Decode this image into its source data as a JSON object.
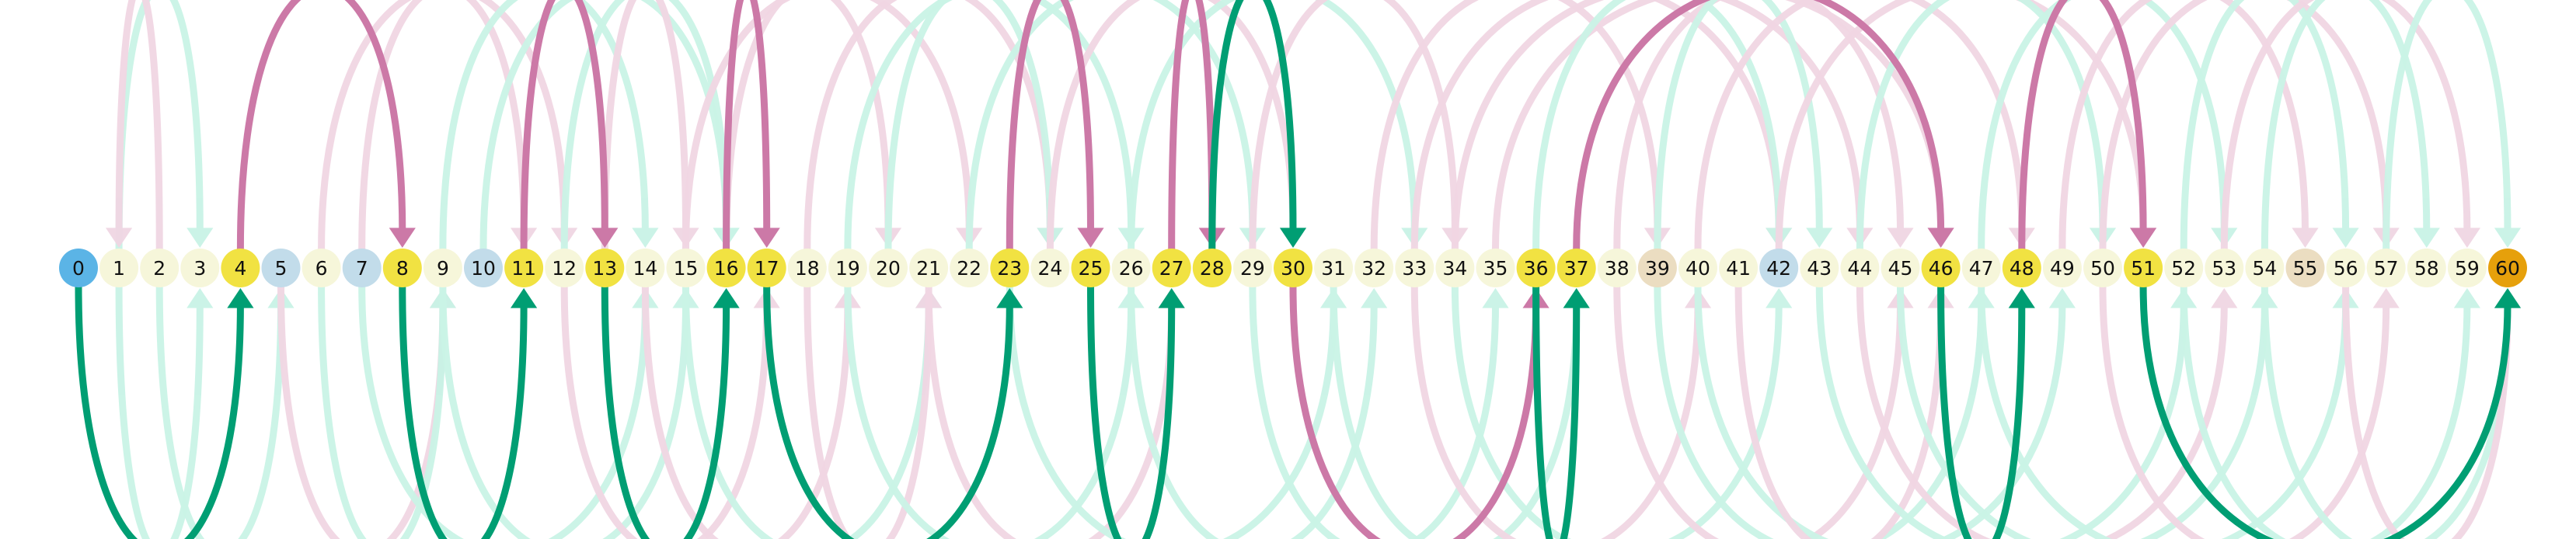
{
  "diagram": {
    "type": "arc-path-graph",
    "node_count": 61,
    "node_labels": [
      "0",
      "1",
      "2",
      "3",
      "4",
      "5",
      "6",
      "7",
      "8",
      "9",
      "10",
      "11",
      "12",
      "13",
      "14",
      "15",
      "16",
      "17",
      "18",
      "19",
      "20",
      "21",
      "22",
      "23",
      "24",
      "25",
      "26",
      "27",
      "28",
      "29",
      "30",
      "31",
      "32",
      "33",
      "34",
      "35",
      "36",
      "37",
      "38",
      "39",
      "40",
      "41",
      "42",
      "43",
      "44",
      "45",
      "46",
      "47",
      "48",
      "49",
      "50",
      "51",
      "52",
      "53",
      "54",
      "55",
      "56",
      "57",
      "58",
      "59",
      "60"
    ],
    "colors": {
      "default": "#f6f6da",
      "path": "#f1e242",
      "start": "#5bb4e6",
      "goal": "#e6a00b",
      "blue_light": "#c2dcea",
      "tan": "#ebddc1",
      "forward_strong": "#009e73",
      "forward_faint": "#c9f3e6",
      "backward_strong": "#cc79a7",
      "backward_faint": "#f0d6e3"
    },
    "special_nodes": {
      "start": [
        0
      ],
      "goal": [
        60
      ],
      "path": [
        4,
        8,
        11,
        13,
        16,
        17,
        23,
        25,
        27,
        28,
        30,
        36,
        37,
        46,
        48,
        51
      ],
      "blue_light": [
        5,
        7,
        10,
        42
      ],
      "tan": [
        39,
        55
      ]
    },
    "path_edges": [
      {
        "from": 0,
        "to": 4,
        "dir": "forward"
      },
      {
        "from": 4,
        "to": 8,
        "dir": "backward"
      },
      {
        "from": 8,
        "to": 11,
        "dir": "forward"
      },
      {
        "from": 11,
        "to": 13,
        "dir": "backward"
      },
      {
        "from": 13,
        "to": 16,
        "dir": "forward"
      },
      {
        "from": 16,
        "to": 17,
        "dir": "backward"
      },
      {
        "from": 17,
        "to": 23,
        "dir": "forward"
      },
      {
        "from": 23,
        "to": 25,
        "dir": "backward"
      },
      {
        "from": 25,
        "to": 27,
        "dir": "forward"
      },
      {
        "from": 27,
        "to": 28,
        "dir": "backward"
      },
      {
        "from": 28,
        "to": 30,
        "dir": "forward-top"
      },
      {
        "from": 30,
        "to": 36,
        "dir": "backward-bottom"
      },
      {
        "from": 36,
        "to": 37,
        "dir": "forward"
      },
      {
        "from": 37,
        "to": 46,
        "dir": "backward"
      },
      {
        "from": 46,
        "to": 48,
        "dir": "forward"
      },
      {
        "from": 48,
        "to": 51,
        "dir": "backward"
      },
      {
        "from": 51,
        "to": 60,
        "dir": "forward"
      }
    ],
    "faint_edges_top": [
      {
        "from": 1,
        "to": 3,
        "color": "forward"
      },
      {
        "from": 2,
        "to": 1,
        "color": "backward"
      },
      {
        "from": 6,
        "to": 12,
        "color": "backward"
      },
      {
        "from": 7,
        "to": 11,
        "color": "backward"
      },
      {
        "from": 9,
        "to": 14,
        "color": "forward"
      },
      {
        "from": 10,
        "to": 16,
        "color": "forward"
      },
      {
        "from": 12,
        "to": 16,
        "color": "forward"
      },
      {
        "from": 13,
        "to": 15,
        "color": "backward"
      },
      {
        "from": 15,
        "to": 22,
        "color": "backward"
      },
      {
        "from": 16,
        "to": 20,
        "color": "backward"
      },
      {
        "from": 18,
        "to": 24,
        "color": "backward"
      },
      {
        "from": 19,
        "to": 26,
        "color": "forward"
      },
      {
        "from": 20,
        "to": 24,
        "color": "forward"
      },
      {
        "from": 22,
        "to": 29,
        "color": "forward"
      },
      {
        "from": 24,
        "to": 30,
        "color": "backward"
      },
      {
        "from": 26,
        "to": 33,
        "color": "forward"
      },
      {
        "from": 29,
        "to": 34,
        "color": "backward"
      },
      {
        "from": 32,
        "to": 39,
        "color": "backward"
      },
      {
        "from": 33,
        "to": 42,
        "color": "backward"
      },
      {
        "from": 34,
        "to": 44,
        "color": "backward"
      },
      {
        "from": 35,
        "to": 46,
        "color": "backward"
      },
      {
        "from": 36,
        "to": 42,
        "color": "forward"
      },
      {
        "from": 38,
        "to": 45,
        "color": "backward"
      },
      {
        "from": 39,
        "to": 43,
        "color": "forward"
      },
      {
        "from": 40,
        "to": 48,
        "color": "backward"
      },
      {
        "from": 42,
        "to": 51,
        "color": "backward"
      },
      {
        "from": 44,
        "to": 50,
        "color": "forward"
      },
      {
        "from": 47,
        "to": 53,
        "color": "forward"
      },
      {
        "from": 49,
        "to": 55,
        "color": "backward"
      },
      {
        "from": 50,
        "to": 57,
        "color": "backward"
      },
      {
        "from": 52,
        "to": 56,
        "color": "forward"
      },
      {
        "from": 53,
        "to": 59,
        "color": "backward"
      },
      {
        "from": 54,
        "to": 58,
        "color": "forward"
      },
      {
        "from": 57,
        "to": 60,
        "color": "forward"
      }
    ],
    "faint_edges_bottom": [
      {
        "from": 1,
        "to": 3,
        "color": "forward"
      },
      {
        "from": 2,
        "to": 5,
        "color": "forward"
      },
      {
        "from": 5,
        "to": 9,
        "color": "backward"
      },
      {
        "from": 6,
        "to": 9,
        "color": "forward"
      },
      {
        "from": 7,
        "to": 14,
        "color": "forward"
      },
      {
        "from": 9,
        "to": 15,
        "color": "forward"
      },
      {
        "from": 12,
        "to": 17,
        "color": "backward"
      },
      {
        "from": 14,
        "to": 19,
        "color": "backward"
      },
      {
        "from": 15,
        "to": 21,
        "color": "forward"
      },
      {
        "from": 18,
        "to": 21,
        "color": "backward"
      },
      {
        "from": 19,
        "to": 26,
        "color": "forward"
      },
      {
        "from": 21,
        "to": 27,
        "color": "backward"
      },
      {
        "from": 23,
        "to": 31,
        "color": "forward"
      },
      {
        "from": 26,
        "to": 32,
        "color": "forward"
      },
      {
        "from": 29,
        "to": 35,
        "color": "forward"
      },
      {
        "from": 31,
        "to": 37,
        "color": "forward"
      },
      {
        "from": 33,
        "to": 40,
        "color": "backward"
      },
      {
        "from": 34,
        "to": 42,
        "color": "forward"
      },
      {
        "from": 38,
        "to": 45,
        "color": "backward"
      },
      {
        "from": 39,
        "to": 47,
        "color": "forward"
      },
      {
        "from": 40,
        "to": 49,
        "color": "forward"
      },
      {
        "from": 41,
        "to": 46,
        "color": "backward"
      },
      {
        "from": 43,
        "to": 52,
        "color": "forward"
      },
      {
        "from": 44,
        "to": 53,
        "color": "backward"
      },
      {
        "from": 45,
        "to": 54,
        "color": "forward"
      },
      {
        "from": 47,
        "to": 56,
        "color": "forward"
      },
      {
        "from": 50,
        "to": 57,
        "color": "backward"
      },
      {
        "from": 52,
        "to": 59,
        "color": "forward"
      },
      {
        "from": 54,
        "to": 60,
        "color": "forward"
      },
      {
        "from": 56,
        "to": 60,
        "color": "backward"
      }
    ]
  }
}
